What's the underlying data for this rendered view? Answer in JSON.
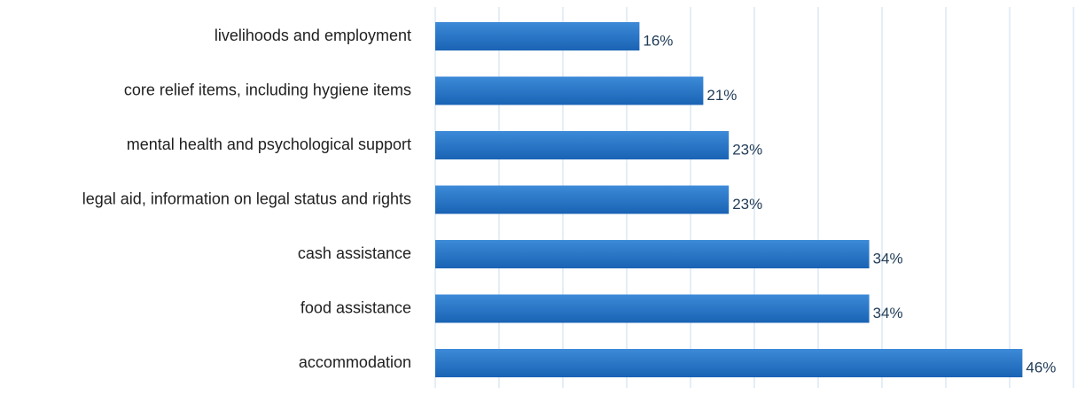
{
  "chart_data": {
    "type": "bar",
    "orientation": "horizontal",
    "categories": [
      "livelihoods and employment",
      "core relief items, including hygiene items",
      "mental health and psychological support",
      "legal aid, information on legal status and rights",
      "cash assistance",
      "food assistance",
      "accommodation"
    ],
    "values": [
      16,
      21,
      23,
      23,
      34,
      34,
      46
    ],
    "value_labels": [
      "16%",
      "21%",
      "23%",
      "23%",
      "34%",
      "34%",
      "46%"
    ],
    "unit": "%",
    "xlim": [
      0,
      50
    ],
    "grid": "vertical",
    "colors": {
      "bar": "#1f6fc3",
      "bar_light": "#3c8ad8",
      "grid": "#c9dcef",
      "value_text": "#1f3b57"
    }
  }
}
